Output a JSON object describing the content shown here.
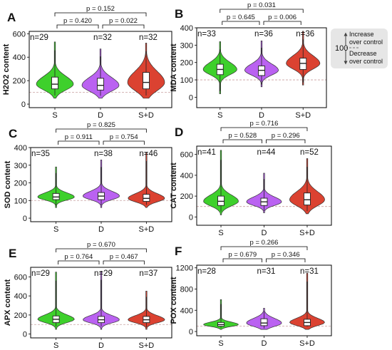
{
  "figure": {
    "legend": {
      "reference_value": "100",
      "increase_label": [
        "Increase",
        "over control"
      ],
      "decrease_label": [
        "Decrease",
        "over control"
      ]
    },
    "colors": {
      "S": "#2ecc1a",
      "D": "#b455f0",
      "S+D": "#d83220"
    }
  },
  "chart_data": [
    {
      "panel": "A",
      "type": "violin",
      "ylabel": "H2O2 content",
      "ylim": [
        -30,
        620
      ],
      "yticks": [
        0,
        200,
        400,
        600
      ],
      "categories": [
        "S",
        "D",
        "S+D"
      ],
      "n": [
        "n=29",
        "n=32",
        "n=32"
      ],
      "median": [
        170,
        160,
        185
      ],
      "q1": [
        130,
        120,
        130
      ],
      "q3": [
        230,
        220,
        270
      ],
      "pmin": [
        50,
        50,
        50
      ],
      "pmax": [
        530,
        470,
        520
      ],
      "comparisons": [
        {
          "pair": [
            "S",
            "D"
          ],
          "label": "p = 0.420"
        },
        {
          "pair": [
            "D",
            "S+D"
          ],
          "label": "p = 0.022"
        },
        {
          "pair": [
            "S",
            "S+D"
          ],
          "label": "p = 0.152"
        }
      ]
    },
    {
      "panel": "B",
      "type": "violin",
      "ylabel": "MDA content",
      "ylim": [
        -60,
        400
      ],
      "yticks": [
        0,
        100,
        200,
        300,
        400
      ],
      "categories": [
        "S",
        "D",
        "S+D"
      ],
      "n": [
        "n=33",
        "n=36",
        "n=36"
      ],
      "median": [
        160,
        155,
        195
      ],
      "q1": [
        130,
        125,
        160
      ],
      "q3": [
        190,
        180,
        225
      ],
      "pmin": [
        20,
        60,
        70
      ],
      "pmax": [
        320,
        325,
        380
      ],
      "comparisons": [
        {
          "pair": [
            "S",
            "D"
          ],
          "label": "p = 0.645"
        },
        {
          "pair": [
            "D",
            "S+D"
          ],
          "label": "p = 0.006"
        },
        {
          "pair": [
            "S",
            "S+D"
          ],
          "label": "p = 0.031"
        }
      ]
    },
    {
      "panel": "C",
      "type": "violin",
      "ylabel": "SOD content",
      "ylim": [
        -20,
        400
      ],
      "yticks": [
        0,
        100,
        200,
        300,
        400
      ],
      "categories": [
        "S",
        "D",
        "S+D"
      ],
      "n": [
        "n=35",
        "n=38",
        "n=46"
      ],
      "median": [
        120,
        125,
        112
      ],
      "q1": [
        105,
        105,
        95
      ],
      "q3": [
        140,
        145,
        135
      ],
      "pmin": [
        60,
        60,
        60
      ],
      "pmax": [
        290,
        330,
        370
      ],
      "comparisons": [
        {
          "pair": [
            "S",
            "D"
          ],
          "label": "p = 0.911"
        },
        {
          "pair": [
            "D",
            "S+D"
          ],
          "label": "p = 0.754"
        },
        {
          "pair": [
            "S",
            "S+D"
          ],
          "label": "p = 0.825"
        }
      ]
    },
    {
      "panel": "D",
      "type": "violin",
      "ylabel": "CAT content",
      "ylim": [
        -80,
        680
      ],
      "yticks": [
        0,
        200,
        400,
        600
      ],
      "categories": [
        "S",
        "D",
        "S+D"
      ],
      "n": [
        "n=41",
        "n=44",
        "n=52"
      ],
      "median": [
        150,
        145,
        165
      ],
      "q1": [
        110,
        110,
        115
      ],
      "q3": [
        200,
        180,
        230
      ],
      "pmin": [
        20,
        40,
        30
      ],
      "pmax": [
        640,
        420,
        560
      ],
      "comparisons": [
        {
          "pair": [
            "S",
            "D"
          ],
          "label": "p = 0.528"
        },
        {
          "pair": [
            "D",
            "S+D"
          ],
          "label": "p = 0.296"
        },
        {
          "pair": [
            "S",
            "S+D"
          ],
          "label": "p = 0.716"
        }
      ]
    },
    {
      "panel": "E",
      "type": "violin",
      "ylabel": "APX content",
      "ylim": [
        -40,
        700
      ],
      "yticks": [
        0,
        200,
        400,
        600
      ],
      "categories": [
        "S",
        "D",
        "S+D"
      ],
      "n": [
        "n=29",
        "n=29",
        "n=37"
      ],
      "median": [
        155,
        150,
        150
      ],
      "q1": [
        120,
        120,
        120
      ],
      "q3": [
        190,
        185,
        185
      ],
      "pmin": [
        50,
        50,
        50
      ],
      "pmax": [
        650,
        660,
        450
      ],
      "comparisons": [
        {
          "pair": [
            "S",
            "D"
          ],
          "label": "p = 0.764"
        },
        {
          "pair": [
            "D",
            "S+D"
          ],
          "label": "p = 0.467"
        },
        {
          "pair": [
            "S",
            "S+D"
          ],
          "label": "p = 0.670"
        }
      ]
    },
    {
      "panel": "F",
      "type": "violin",
      "ylabel": "POX content",
      "ylim": [
        -80,
        1250
      ],
      "yticks": [
        0,
        400,
        800,
        1200
      ],
      "categories": [
        "S",
        "D",
        "S+D"
      ],
      "n": [
        "n=28",
        "n=31",
        "n=31"
      ],
      "median": [
        130,
        160,
        170
      ],
      "q1": [
        100,
        110,
        110
      ],
      "q3": [
        170,
        240,
        230
      ],
      "pmin": [
        40,
        40,
        40
      ],
      "pmax": [
        600,
        440,
        1100
      ],
      "comparisons": [
        {
          "pair": [
            "S",
            "D"
          ],
          "label": "p = 0.679"
        },
        {
          "pair": [
            "D",
            "S+D"
          ],
          "label": "p = 0.346"
        },
        {
          "pair": [
            "S",
            "S+D"
          ],
          "label": "p = 0.266"
        }
      ]
    }
  ]
}
